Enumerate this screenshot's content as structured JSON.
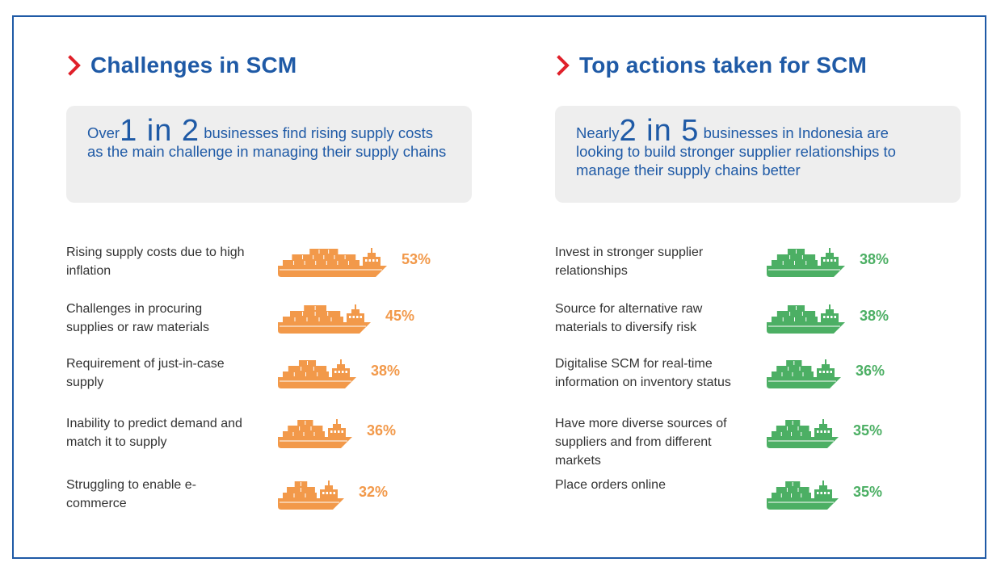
{
  "colors": {
    "brand_blue": "#1f5aa6",
    "accent_red": "#e0202a",
    "orange": "#f2994a",
    "green": "#4caf64",
    "callout_bg": "#eeeeee"
  },
  "left": {
    "heading": "Challenges in SCM",
    "callout": {
      "prefix": "Over",
      "big": "1 in 2",
      "rest": "businesses find rising supply costs as the main challenge in managing their supply chains"
    }
  },
  "right": {
    "heading": "Top actions taken for SCM",
    "callout": {
      "prefix": "Nearly",
      "big": "2 in 5",
      "rest": "businesses in Indonesia are looking to build stronger supplier relationships to manage their supply chains better"
    }
  },
  "chart_data": [
    {
      "type": "bar",
      "title": "Challenges in SCM",
      "categories": [
        "Rising supply costs due to high inflation",
        "Challenges in procuring supplies or raw materials",
        "Requirement of just-in-case supply",
        "Inability to predict demand and match it to supply",
        "Struggling to enable e-commerce"
      ],
      "values": [
        53,
        45,
        38,
        36,
        32
      ],
      "value_labels": [
        "53%",
        "45%",
        "38%",
        "36%",
        "32%"
      ],
      "unit": "%",
      "marker": "ship-icon",
      "color": "#f2994a"
    },
    {
      "type": "bar",
      "title": "Top actions taken for SCM",
      "categories": [
        "Invest in stronger supplier relationships",
        "Source for alternative raw materials to diversify risk",
        "Digitalise SCM for real-time information on inventory status",
        "Have more diverse sources of suppliers and from different markets",
        "Place orders online"
      ],
      "values": [
        38,
        38,
        36,
        35,
        35
      ],
      "value_labels": [
        "38%",
        "38%",
        "36%",
        "35%",
        "35%"
      ],
      "unit": "%",
      "marker": "ship-icon",
      "color": "#4caf64"
    }
  ]
}
